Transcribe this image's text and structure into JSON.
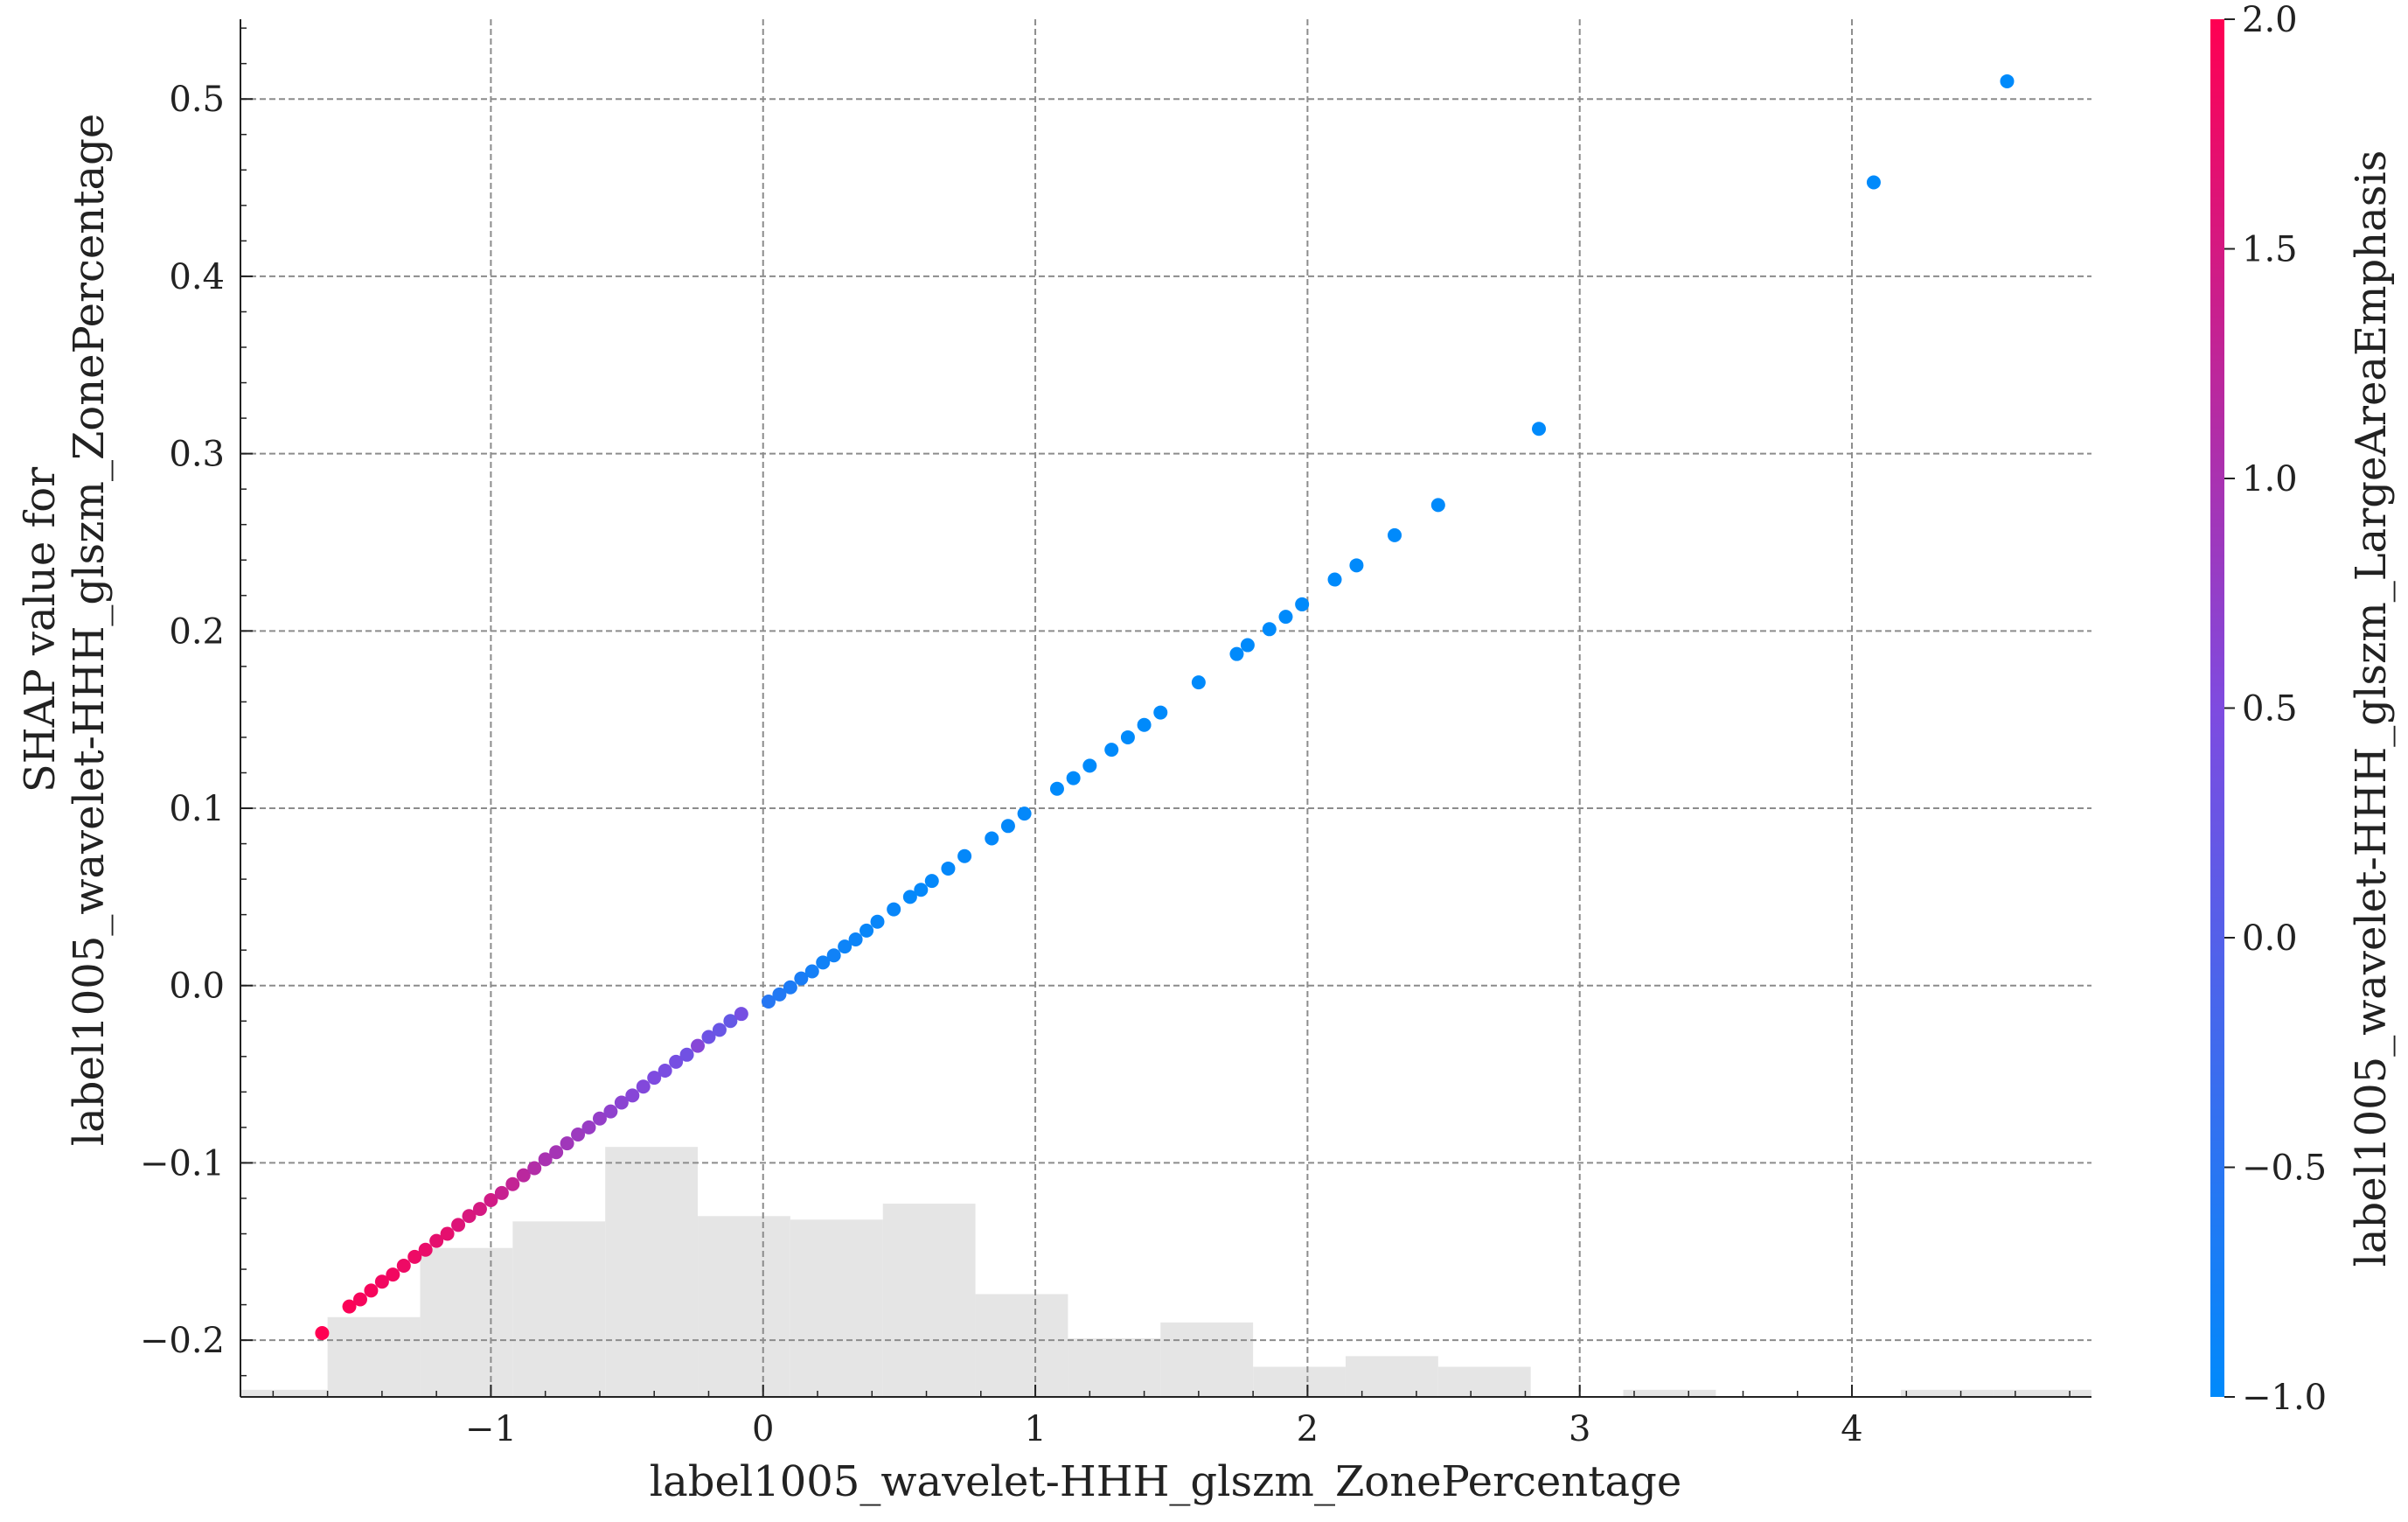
{
  "chart_data": {
    "type": "scatter",
    "title": "",
    "xlabel": "label1005_wavelet-HHH_glszm_ZonePercentage",
    "ylabel_lines": [
      "SHAP value for",
      "label1005_wavelet-HHH_glszm_ZonePercentage"
    ],
    "colorbar_label": "label1005_wavelet-HHH_glszm_LargeAreaEmphasis",
    "xlim": [
      -1.92,
      4.88
    ],
    "ylim": [
      -0.232,
      0.545
    ],
    "x_ticks": [
      -1,
      0,
      1,
      2,
      3,
      4
    ],
    "x_tick_labels": [
      "−1",
      "0",
      "1",
      "2",
      "3",
      "4"
    ],
    "y_ticks": [
      -0.2,
      -0.1,
      0.0,
      0.1,
      0.2,
      0.3,
      0.4,
      0.5
    ],
    "y_tick_labels": [
      "−0.2",
      "−0.1",
      "0.0",
      "0.1",
      "0.2",
      "0.3",
      "0.4",
      "0.5"
    ],
    "colorbar_range": [
      -1.0,
      2.0
    ],
    "colorbar_ticks": [
      2.0,
      1.5,
      1.0,
      0.5,
      0.0,
      -0.5,
      -1.0
    ],
    "colorbar_tick_labels": [
      "2.0",
      "1.5",
      "1.0",
      "0.5",
      "0.0",
      "−0.5",
      "−1.0"
    ],
    "colormap": [
      "#008afb",
      "#7e4be0",
      "#ff0052"
    ],
    "grid": true,
    "grid_color": "#8c8c8c",
    "histogram": {
      "color": "#e5e5e5",
      "bin_edges": [
        -1.92,
        -1.6,
        -1.26,
        -0.92,
        -0.58,
        -0.24,
        0.1,
        0.44,
        0.78,
        1.12,
        1.46,
        1.8,
        2.14,
        2.48,
        2.82,
        3.16,
        3.5,
        3.84,
        4.18,
        4.52,
        4.88
      ],
      "tops": [
        -0.228,
        -0.187,
        -0.148,
        -0.133,
        -0.091,
        -0.13,
        -0.132,
        -0.123,
        -0.174,
        -0.199,
        -0.19,
        -0.215,
        -0.209,
        -0.215,
        -0.232,
        -0.228,
        -0.232,
        -0.232,
        -0.228,
        -0.228
      ]
    },
    "points": [
      {
        "x": -1.62,
        "y": -0.196,
        "c": 2.0
      },
      {
        "x": -1.52,
        "y": -0.181,
        "c": 1.95
      },
      {
        "x": -1.48,
        "y": -0.177,
        "c": 1.9
      },
      {
        "x": -1.44,
        "y": -0.172,
        "c": 1.9
      },
      {
        "x": -1.4,
        "y": -0.167,
        "c": 1.85
      },
      {
        "x": -1.36,
        "y": -0.163,
        "c": 1.85
      },
      {
        "x": -1.32,
        "y": -0.158,
        "c": 1.8
      },
      {
        "x": -1.28,
        "y": -0.153,
        "c": 1.8
      },
      {
        "x": -1.24,
        "y": -0.149,
        "c": 1.75
      },
      {
        "x": -1.2,
        "y": -0.144,
        "c": 1.7
      },
      {
        "x": -1.16,
        "y": -0.14,
        "c": 1.7
      },
      {
        "x": -1.12,
        "y": -0.135,
        "c": 1.6
      },
      {
        "x": -1.08,
        "y": -0.13,
        "c": 1.55
      },
      {
        "x": -1.04,
        "y": -0.126,
        "c": 1.5
      },
      {
        "x": -1.0,
        "y": -0.121,
        "c": 1.45
      },
      {
        "x": -0.96,
        "y": -0.117,
        "c": 1.35
      },
      {
        "x": -0.92,
        "y": -0.112,
        "c": 1.3
      },
      {
        "x": -0.88,
        "y": -0.107,
        "c": 1.2
      },
      {
        "x": -0.84,
        "y": -0.103,
        "c": 1.1
      },
      {
        "x": -0.8,
        "y": -0.098,
        "c": 1.0
      },
      {
        "x": -0.76,
        "y": -0.094,
        "c": 0.95
      },
      {
        "x": -0.72,
        "y": -0.089,
        "c": 0.9
      },
      {
        "x": -0.68,
        "y": -0.084,
        "c": 0.85
      },
      {
        "x": -0.64,
        "y": -0.08,
        "c": 0.8
      },
      {
        "x": -0.6,
        "y": -0.075,
        "c": 0.75
      },
      {
        "x": -0.56,
        "y": -0.071,
        "c": 0.7
      },
      {
        "x": -0.52,
        "y": -0.066,
        "c": 0.65
      },
      {
        "x": -0.48,
        "y": -0.062,
        "c": 0.6
      },
      {
        "x": -0.44,
        "y": -0.057,
        "c": 0.55
      },
      {
        "x": -0.4,
        "y": -0.052,
        "c": 0.5
      },
      {
        "x": -0.36,
        "y": -0.048,
        "c": 0.45
      },
      {
        "x": -0.32,
        "y": -0.043,
        "c": 0.4
      },
      {
        "x": -0.28,
        "y": -0.039,
        "c": 0.35
      },
      {
        "x": -0.24,
        "y": -0.034,
        "c": 0.6
      },
      {
        "x": -0.2,
        "y": -0.029,
        "c": 0.3
      },
      {
        "x": -0.16,
        "y": -0.025,
        "c": 0.25
      },
      {
        "x": -0.12,
        "y": -0.02,
        "c": 0.2
      },
      {
        "x": -0.08,
        "y": -0.016,
        "c": 0.4
      },
      {
        "x": 0.02,
        "y": -0.009,
        "c": -0.55
      },
      {
        "x": 0.06,
        "y": -0.005,
        "c": -0.6
      },
      {
        "x": 0.1,
        "y": -0.001,
        "c": -0.65
      },
      {
        "x": 0.14,
        "y": 0.004,
        "c": -0.7
      },
      {
        "x": 0.18,
        "y": 0.008,
        "c": -0.75
      },
      {
        "x": 0.22,
        "y": 0.013,
        "c": -0.8
      },
      {
        "x": 0.26,
        "y": 0.017,
        "c": -0.8
      },
      {
        "x": 0.3,
        "y": 0.022,
        "c": -0.85
      },
      {
        "x": 0.34,
        "y": 0.026,
        "c": -0.85
      },
      {
        "x": 0.38,
        "y": 0.031,
        "c": -0.9
      },
      {
        "x": 0.42,
        "y": 0.036,
        "c": -0.9
      },
      {
        "x": 0.48,
        "y": 0.043,
        "c": -0.9
      },
      {
        "x": 0.54,
        "y": 0.05,
        "c": -0.95
      },
      {
        "x": 0.58,
        "y": 0.054,
        "c": -0.95
      },
      {
        "x": 0.62,
        "y": 0.059,
        "c": -0.95
      },
      {
        "x": 0.68,
        "y": 0.066,
        "c": -0.95
      },
      {
        "x": 0.74,
        "y": 0.073,
        "c": -0.95
      },
      {
        "x": 0.84,
        "y": 0.083,
        "c": -0.95
      },
      {
        "x": 0.9,
        "y": 0.09,
        "c": -0.95
      },
      {
        "x": 0.96,
        "y": 0.097,
        "c": -0.95
      },
      {
        "x": 1.08,
        "y": 0.111,
        "c": -1.0
      },
      {
        "x": 1.14,
        "y": 0.117,
        "c": -1.0
      },
      {
        "x": 1.2,
        "y": 0.124,
        "c": -1.0
      },
      {
        "x": 1.28,
        "y": 0.133,
        "c": -1.0
      },
      {
        "x": 1.34,
        "y": 0.14,
        "c": -1.0
      },
      {
        "x": 1.4,
        "y": 0.147,
        "c": -1.0
      },
      {
        "x": 1.46,
        "y": 0.154,
        "c": -1.0
      },
      {
        "x": 1.6,
        "y": 0.171,
        "c": -1.0
      },
      {
        "x": 1.74,
        "y": 0.187,
        "c": -1.0
      },
      {
        "x": 1.78,
        "y": 0.192,
        "c": -1.0
      },
      {
        "x": 1.86,
        "y": 0.201,
        "c": -1.0
      },
      {
        "x": 1.92,
        "y": 0.208,
        "c": -1.0
      },
      {
        "x": 1.98,
        "y": 0.215,
        "c": -1.0
      },
      {
        "x": 2.1,
        "y": 0.229,
        "c": -1.0
      },
      {
        "x": 2.18,
        "y": 0.237,
        "c": -1.0
      },
      {
        "x": 2.32,
        "y": 0.254,
        "c": -1.0
      },
      {
        "x": 2.48,
        "y": 0.271,
        "c": -1.0
      },
      {
        "x": 2.85,
        "y": 0.314,
        "c": -1.0
      },
      {
        "x": 4.08,
        "y": 0.453,
        "c": -1.0
      },
      {
        "x": 4.57,
        "y": 0.51,
        "c": -1.0
      }
    ]
  }
}
